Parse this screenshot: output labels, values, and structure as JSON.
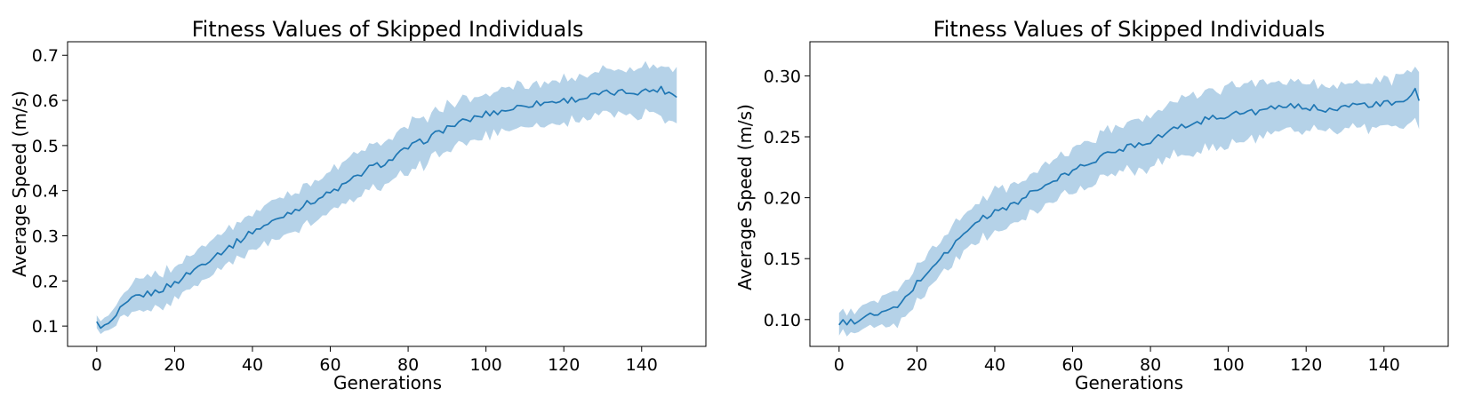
{
  "style": {
    "line_color": "#1f77b4",
    "band_color": "#b5d2e8"
  },
  "chart_data": [
    {
      "type": "line",
      "title": "Fitness Values of Skipped Individuals",
      "xlabel": "Generations",
      "ylabel": "Average Speed (m/s)",
      "xlim": [
        -7.5,
        156.5
      ],
      "ylim": [
        0.055,
        0.73
      ],
      "xticks": [
        0,
        20,
        40,
        60,
        80,
        100,
        120,
        140
      ],
      "xtick_labels": [
        "0",
        "20",
        "40",
        "60",
        "80",
        "100",
        "120",
        "140"
      ],
      "yticks": [
        0.1,
        0.2,
        0.3,
        0.4,
        0.5,
        0.6,
        0.7
      ],
      "ytick_labels": [
        "0.1",
        "0.2",
        "0.3",
        "0.4",
        "0.5",
        "0.6",
        "0.7"
      ],
      "grid": false,
      "series": [
        {
          "shaded_band": "mean ± spread",
          "x_start": 0,
          "x_end": 149,
          "mean_keypoints": [
            [
              0,
              0.105
            ],
            [
              2,
              0.098
            ],
            [
              4,
              0.11
            ],
            [
              6,
              0.135
            ],
            [
              8,
              0.15
            ],
            [
              10,
              0.165
            ],
            [
              15,
              0.175
            ],
            [
              20,
              0.195
            ],
            [
              25,
              0.225
            ],
            [
              30,
              0.255
            ],
            [
              35,
              0.28
            ],
            [
              40,
              0.31
            ],
            [
              45,
              0.33
            ],
            [
              50,
              0.355
            ],
            [
              55,
              0.375
            ],
            [
              60,
              0.395
            ],
            [
              65,
              0.42
            ],
            [
              70,
              0.45
            ],
            [
              75,
              0.465
            ],
            [
              80,
              0.495
            ],
            [
              85,
              0.515
            ],
            [
              90,
              0.54
            ],
            [
              95,
              0.555
            ],
            [
              100,
              0.57
            ],
            [
              105,
              0.578
            ],
            [
              110,
              0.59
            ],
            [
              115,
              0.595
            ],
            [
              120,
              0.6
            ],
            [
              125,
              0.605
            ],
            [
              130,
              0.615
            ],
            [
              135,
              0.618
            ],
            [
              140,
              0.62
            ],
            [
              145,
              0.625
            ],
            [
              149,
              0.61
            ]
          ],
          "spread_keypoints": [
            [
              0,
              0.012
            ],
            [
              5,
              0.02
            ],
            [
              10,
              0.035
            ],
            [
              20,
              0.035
            ],
            [
              40,
              0.038
            ],
            [
              60,
              0.045
            ],
            [
              80,
              0.05
            ],
            [
              100,
              0.045
            ],
            [
              120,
              0.045
            ],
            [
              140,
              0.05
            ],
            [
              149,
              0.055
            ]
          ]
        }
      ]
    },
    {
      "type": "line",
      "title": "Fitness Values of Skipped Individuals",
      "xlabel": "Generations",
      "ylabel": "Average Speed (m/s)",
      "xlim": [
        -7.5,
        156.5
      ],
      "ylim": [
        0.078,
        0.328
      ],
      "xticks": [
        0,
        20,
        40,
        60,
        80,
        100,
        120,
        140
      ],
      "xtick_labels": [
        "0",
        "20",
        "40",
        "60",
        "80",
        "100",
        "120",
        "140"
      ],
      "yticks": [
        0.1,
        0.15,
        0.2,
        0.25,
        0.3
      ],
      "ytick_labels": [
        "0.10",
        "0.15",
        "0.20",
        "0.25",
        "0.30"
      ],
      "grid": false,
      "series": [
        {
          "shaded_band": "mean ± spread",
          "x_start": 0,
          "x_end": 149,
          "mean_keypoints": [
            [
              0,
              0.097
            ],
            [
              3,
              0.098
            ],
            [
              6,
              0.101
            ],
            [
              10,
              0.105
            ],
            [
              14,
              0.108
            ],
            [
              16,
              0.113
            ],
            [
              20,
              0.13
            ],
            [
              25,
              0.147
            ],
            [
              30,
              0.163
            ],
            [
              35,
              0.18
            ],
            [
              40,
              0.188
            ],
            [
              45,
              0.195
            ],
            [
              50,
              0.205
            ],
            [
              55,
              0.213
            ],
            [
              60,
              0.222
            ],
            [
              65,
              0.23
            ],
            [
              70,
              0.237
            ],
            [
              75,
              0.243
            ],
            [
              80,
              0.247
            ],
            [
              85,
              0.255
            ],
            [
              90,
              0.26
            ],
            [
              95,
              0.265
            ],
            [
              100,
              0.268
            ],
            [
              105,
              0.27
            ],
            [
              110,
              0.272
            ],
            [
              115,
              0.275
            ],
            [
              120,
              0.274
            ],
            [
              125,
              0.273
            ],
            [
              130,
              0.275
            ],
            [
              135,
              0.276
            ],
            [
              140,
              0.277
            ],
            [
              145,
              0.277
            ],
            [
              148,
              0.29
            ],
            [
              149,
              0.278
            ]
          ],
          "spread_keypoints": [
            [
              0,
              0.008
            ],
            [
              10,
              0.01
            ],
            [
              15,
              0.014
            ],
            [
              20,
              0.014
            ],
            [
              30,
              0.015
            ],
            [
              40,
              0.016
            ],
            [
              60,
              0.016
            ],
            [
              80,
              0.02
            ],
            [
              90,
              0.022
            ],
            [
              100,
              0.022
            ],
            [
              120,
              0.018
            ],
            [
              140,
              0.018
            ],
            [
              149,
              0.02
            ]
          ]
        }
      ]
    }
  ]
}
